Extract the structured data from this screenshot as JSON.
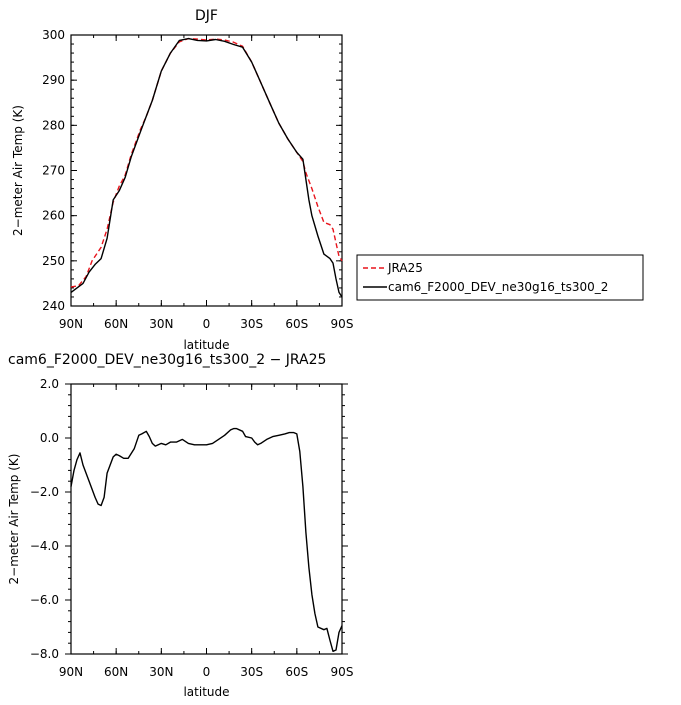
{
  "chart_data": [
    {
      "type": "line",
      "title": "DJF",
      "xlabel": "latitude",
      "ylabel": "2−meter Air Temp (K)",
      "xlim": [
        90,
        -90
      ],
      "ylim": [
        240,
        300
      ],
      "x_ticks": [
        90,
        60,
        30,
        0,
        -30,
        -60,
        -90
      ],
      "x_tick_labels": [
        "90N",
        "60N",
        "30N",
        "0",
        "30S",
        "60S",
        "90S"
      ],
      "y_ticks": [
        240,
        250,
        260,
        270,
        280,
        290,
        300
      ],
      "y_tick_labels": [
        "240",
        "250",
        "260",
        "270",
        "280",
        "290",
        "300"
      ],
      "legend_position": "right",
      "series": [
        {
          "name": "JRA25",
          "color": "#e8141c",
          "dash": "dashed",
          "points": [
            [
              90,
              244.2
            ],
            [
              85,
              244.5
            ],
            [
              80,
              246.5
            ],
            [
              76,
              250
            ],
            [
              70,
              253
            ],
            [
              66,
              257
            ],
            [
              62,
              263
            ],
            [
              58,
              266.5
            ],
            [
              54,
              269
            ],
            [
              50,
              273.5
            ],
            [
              44,
              279
            ],
            [
              40,
              282
            ],
            [
              36,
              285.5
            ],
            [
              30,
              292
            ],
            [
              24,
              296
            ],
            [
              18,
              298.5
            ],
            [
              12,
              299.2
            ],
            [
              6,
              299.1
            ],
            [
              0,
              298.9
            ],
            [
              -6,
              299.1
            ],
            [
              -12,
              298.9
            ],
            [
              -18,
              298.4
            ],
            [
              -24,
              297.5
            ],
            [
              -30,
              294
            ],
            [
              -36,
              289.5
            ],
            [
              -42,
              285
            ],
            [
              -48,
              280.5
            ],
            [
              -54,
              277
            ],
            [
              -60,
              274
            ],
            [
              -64,
              272
            ],
            [
              -66,
              269.5
            ],
            [
              -70,
              266
            ],
            [
              -74,
              262
            ],
            [
              -78,
              258.5
            ],
            [
              -82,
              258
            ],
            [
              -84,
              257
            ],
            [
              -86,
              254
            ],
            [
              -88,
              251
            ],
            [
              -90,
              250
            ]
          ]
        },
        {
          "name": "cam6_F2000_DEV_ne30g16_ts300_2",
          "color": "#000000",
          "dash": "solid",
          "points": [
            [
              90,
              243
            ],
            [
              86,
              244
            ],
            [
              82,
              245
            ],
            [
              78,
              247.5
            ],
            [
              74,
              249.2
            ],
            [
              70,
              250.5
            ],
            [
              66,
              255
            ],
            [
              62,
              263.5
            ],
            [
              58,
              265.5
            ],
            [
              54,
              268.5
            ],
            [
              50,
              273
            ],
            [
              44,
              278.5
            ],
            [
              40,
              282
            ],
            [
              36,
              285.5
            ],
            [
              30,
              292
            ],
            [
              24,
              296
            ],
            [
              18,
              298.8
            ],
            [
              12,
              299.2
            ],
            [
              6,
              298.8
            ],
            [
              0,
              298.7
            ],
            [
              -6,
              299
            ],
            [
              -12,
              298.6
            ],
            [
              -18,
              297.9
            ],
            [
              -24,
              297.3
            ],
            [
              -30,
              294
            ],
            [
              -36,
              289.5
            ],
            [
              -42,
              285
            ],
            [
              -48,
              280.5
            ],
            [
              -54,
              277
            ],
            [
              -60,
              274
            ],
            [
              -64,
              272.5
            ],
            [
              -66,
              268
            ],
            [
              -68,
              263.5
            ],
            [
              -70,
              260
            ],
            [
              -74,
              255.5
            ],
            [
              -78,
              251.5
            ],
            [
              -82,
              250.5
            ],
            [
              -84,
              249.5
            ],
            [
              -86,
              246
            ],
            [
              -88,
              243
            ],
            [
              -90,
              242
            ]
          ]
        }
      ]
    },
    {
      "type": "line",
      "title": "cam6_F2000_DEV_ne30g16_ts300_2 − JRA25",
      "xlabel": "latitude",
      "ylabel": "2−meter Air Temp (K)",
      "xlim": [
        90,
        -90
      ],
      "ylim": [
        -8,
        2
      ],
      "x_ticks": [
        90,
        60,
        30,
        0,
        -30,
        -60,
        -90
      ],
      "x_tick_labels": [
        "90N",
        "60N",
        "30N",
        "0",
        "30S",
        "60S",
        "90S"
      ],
      "y_ticks": [
        2,
        0,
        -2,
        -4,
        -6,
        -8
      ],
      "y_tick_labels": [
        "2.0",
        "0.0",
        "−2.0",
        "−4.0",
        "−6.0",
        "−8.0"
      ],
      "series": [
        {
          "color": "#000000",
          "dash": "solid",
          "points": [
            [
              90,
              -1.8
            ],
            [
              88,
              -1.2
            ],
            [
              86,
              -0.8
            ],
            [
              84,
              -0.55
            ],
            [
              82,
              -1.0
            ],
            [
              78,
              -1.6
            ],
            [
              74,
              -2.2
            ],
            [
              72,
              -2.45
            ],
            [
              70,
              -2.5
            ],
            [
              68,
              -2.2
            ],
            [
              66,
              -1.3
            ],
            [
              62,
              -0.7
            ],
            [
              60,
              -0.6
            ],
            [
              58,
              -0.65
            ],
            [
              55,
              -0.75
            ],
            [
              52,
              -0.75
            ],
            [
              48,
              -0.4
            ],
            [
              45,
              0.1
            ],
            [
              43,
              0.15
            ],
            [
              40,
              0.25
            ],
            [
              38,
              0.05
            ],
            [
              36,
              -0.2
            ],
            [
              34,
              -0.3
            ],
            [
              30,
              -0.2
            ],
            [
              27,
              -0.25
            ],
            [
              24,
              -0.15
            ],
            [
              20,
              -0.15
            ],
            [
              16,
              -0.05
            ],
            [
              12,
              -0.2
            ],
            [
              8,
              -0.25
            ],
            [
              4,
              -0.25
            ],
            [
              0,
              -0.25
            ],
            [
              -4,
              -0.2
            ],
            [
              -8,
              -0.05
            ],
            [
              -12,
              0.1
            ],
            [
              -16,
              0.3
            ],
            [
              -18,
              0.35
            ],
            [
              -20,
              0.35
            ],
            [
              -24,
              0.25
            ],
            [
              -26,
              0.05
            ],
            [
              -30,
              0.0
            ],
            [
              -32,
              -0.15
            ],
            [
              -34,
              -0.25
            ],
            [
              -36,
              -0.2
            ],
            [
              -40,
              -0.05
            ],
            [
              -44,
              0.05
            ],
            [
              -48,
              0.1
            ],
            [
              -52,
              0.15
            ],
            [
              -55,
              0.2
            ],
            [
              -58,
              0.2
            ],
            [
              -60,
              0.15
            ],
            [
              -62,
              -0.5
            ],
            [
              -64,
              -1.8
            ],
            [
              -66,
              -3.5
            ],
            [
              -68,
              -4.8
            ],
            [
              -70,
              -5.8
            ],
            [
              -72,
              -6.5
            ],
            [
              -74,
              -7.0
            ],
            [
              -78,
              -7.1
            ],
            [
              -80,
              -7.05
            ],
            [
              -82,
              -7.5
            ],
            [
              -84,
              -7.9
            ],
            [
              -86,
              -7.85
            ],
            [
              -88,
              -7.2
            ],
            [
              -90,
              -6.95
            ]
          ]
        }
      ]
    }
  ]
}
